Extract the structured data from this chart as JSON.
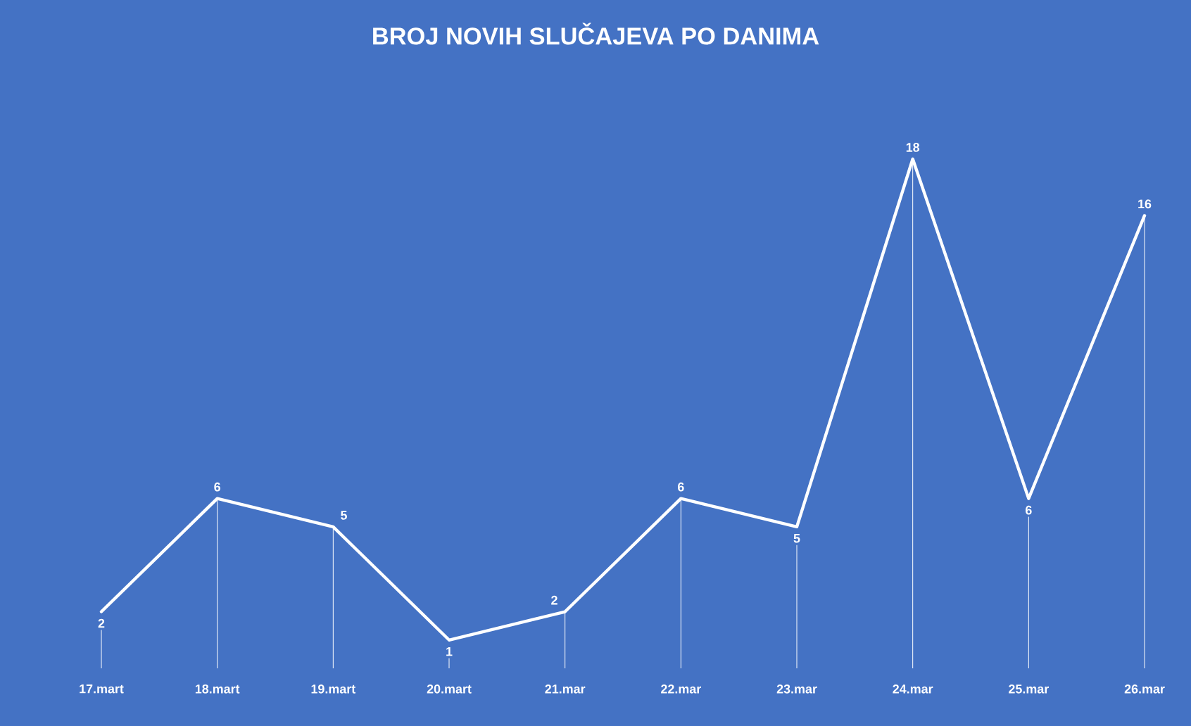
{
  "chart_data": {
    "type": "line",
    "title": "BROJ NOVIH SLUČAJEVA  PO DANIMA",
    "categories": [
      "17.mart",
      "18.mart",
      "19.mart",
      "20.mart",
      "21.mar",
      "22.mar",
      "23.mar",
      "24.mar",
      "25.mar",
      "26.mar"
    ],
    "values": [
      2,
      6,
      5,
      1,
      2,
      6,
      5,
      18,
      6,
      16
    ],
    "color": "#ffffff",
    "data_labels": true,
    "line_style": "solid"
  }
}
